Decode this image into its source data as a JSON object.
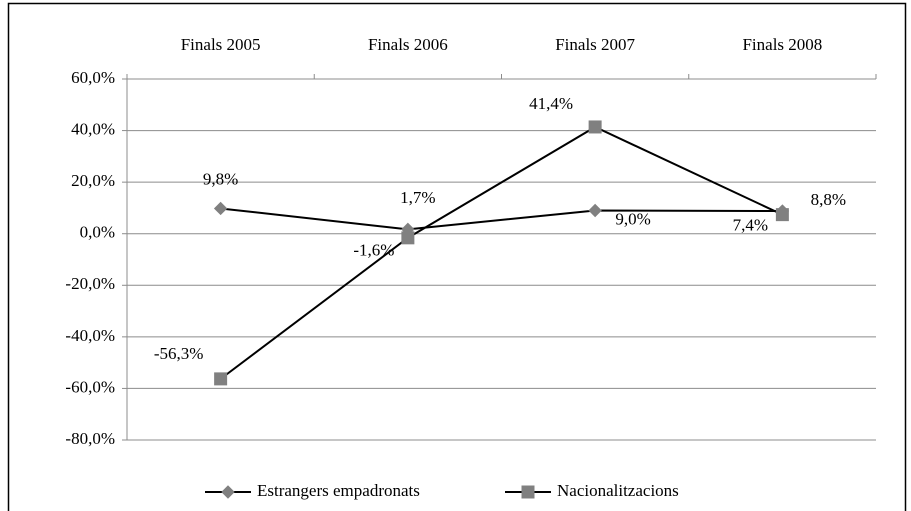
{
  "chart_data": {
    "type": "line",
    "categories": [
      "Finals 2005",
      "Finals 2006",
      "Finals 2007",
      "Finals 2008"
    ],
    "series": [
      {
        "name": "Estrangers empadronats",
        "color": "#000000",
        "marker": "diamond",
        "marker_color": "#808080",
        "values": [
          9.8,
          1.7,
          9.0,
          8.8
        ],
        "value_labels": [
          "9,8%",
          "1,7%",
          "9,0%",
          "8,8%"
        ]
      },
      {
        "name": "Nacionalitzacions",
        "color": "#000000",
        "marker": "square",
        "marker_color": "#808080",
        "values": [
          -56.3,
          -1.6,
          41.4,
          7.4
        ],
        "value_labels": [
          "-56,3%",
          "-1,6%",
          "41,4%",
          "7,4%"
        ]
      }
    ],
    "ylim": [
      -80,
      60
    ],
    "yticks": [
      {
        "value": -80,
        "label": "-80,0%"
      },
      {
        "value": -60,
        "label": "-60,0%"
      },
      {
        "value": -40,
        "label": "-40,0%"
      },
      {
        "value": -20,
        "label": "-20,0%"
      },
      {
        "value": 0,
        "label": "0,0%"
      },
      {
        "value": 20,
        "label": "20,0%"
      },
      {
        "value": 40,
        "label": "40,0%"
      },
      {
        "value": 60,
        "label": "60,0%"
      }
    ],
    "grid": true,
    "legend": "bottom",
    "category_axis": "top"
  }
}
